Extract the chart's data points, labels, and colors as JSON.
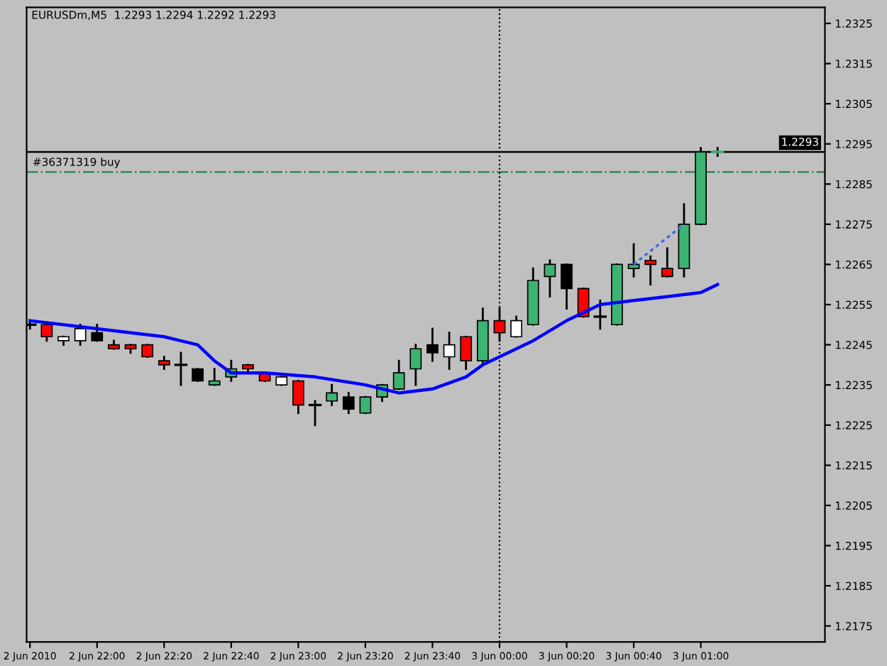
{
  "chart_data": {
    "type": "candlestick",
    "title": "EURUSDm,M5  1.2293 1.2294 1.2292 1.2293",
    "x": [
      "2010-06-02T21:40",
      "2010-06-02T21:45",
      "2010-06-02T21:50",
      "2010-06-02T21:55",
      "2010-06-02T22:00",
      "2010-06-02T22:05",
      "2010-06-02T22:10",
      "2010-06-02T22:15",
      "2010-06-02T22:20",
      "2010-06-02T22:25",
      "2010-06-02T22:30",
      "2010-06-02T22:35",
      "2010-06-02T22:40",
      "2010-06-02T22:45",
      "2010-06-02T22:50",
      "2010-06-02T22:55",
      "2010-06-02T23:00",
      "2010-06-02T23:05",
      "2010-06-02T23:10",
      "2010-06-02T23:15",
      "2010-06-02T23:20",
      "2010-06-02T23:25",
      "2010-06-02T23:30",
      "2010-06-02T23:35",
      "2010-06-02T23:40",
      "2010-06-02T23:45",
      "2010-06-02T23:50",
      "2010-06-02T23:55",
      "2010-06-03T00:00",
      "2010-06-03T00:05",
      "2010-06-03T00:10",
      "2010-06-03T00:15",
      "2010-06-03T00:20",
      "2010-06-03T00:25",
      "2010-06-03T00:30",
      "2010-06-03T00:35",
      "2010-06-03T00:40",
      "2010-06-03T00:45",
      "2010-06-03T00:50",
      "2010-06-03T00:55",
      "2010-06-03T01:00",
      "2010-06-03T01:05"
    ],
    "ohlc": [
      [
        1.225,
        1.2251,
        1.2249,
        1.225
      ],
      [
        1.225,
        1.225,
        1.2246,
        1.2247
      ],
      [
        1.2246,
        1.2247,
        1.2245,
        1.2247
      ],
      [
        1.2246,
        1.225,
        1.2245,
        1.2249
      ],
      [
        1.2248,
        1.225,
        1.2246,
        1.2246
      ],
      [
        1.2245,
        1.2246,
        1.2244,
        1.2244
      ],
      [
        1.2245,
        1.2245,
        1.2243,
        1.2244
      ],
      [
        1.2245,
        1.2245,
        1.2242,
        1.2242
      ],
      [
        1.2241,
        1.2242,
        1.2239,
        1.224
      ],
      [
        1.224,
        1.2243,
        1.2235,
        1.224
      ],
      [
        1.2239,
        1.2239,
        1.2236,
        1.2236
      ],
      [
        1.2235,
        1.2239,
        1.2235,
        1.2236
      ],
      [
        1.2237,
        1.2241,
        1.2236,
        1.2239
      ],
      [
        1.224,
        1.224,
        1.2238,
        1.2239
      ],
      [
        1.2238,
        1.2238,
        1.2236,
        1.2236
      ],
      [
        1.2235,
        1.2237,
        1.2235,
        1.2237
      ],
      [
        1.2236,
        1.2236,
        1.2228,
        1.223
      ],
      [
        1.223,
        1.2231,
        1.2225,
        1.223
      ],
      [
        1.2231,
        1.2235,
        1.223,
        1.2233
      ],
      [
        1.2232,
        1.2233,
        1.2228,
        1.2229
      ],
      [
        1.2228,
        1.2232,
        1.2228,
        1.2232
      ],
      [
        1.2232,
        1.2235,
        1.2231,
        1.2235
      ],
      [
        1.2234,
        1.2241,
        1.2234,
        1.2238
      ],
      [
        1.2239,
        1.2245,
        1.2235,
        1.2244
      ],
      [
        1.2245,
        1.2249,
        1.2241,
        1.2243
      ],
      [
        1.2242,
        1.2248,
        1.2239,
        1.2245
      ],
      [
        1.2247,
        1.2247,
        1.2239,
        1.2241
      ],
      [
        1.2241,
        1.2254,
        1.224,
        1.2251
      ],
      [
        1.2251,
        1.2254,
        1.2246,
        1.2248
      ],
      [
        1.2247,
        1.2252,
        1.2247,
        1.2251
      ],
      [
        1.225,
        1.2264,
        1.225,
        1.2261
      ],
      [
        1.2262,
        1.2266,
        1.2257,
        1.2265
      ],
      [
        1.2265,
        1.2265,
        1.2254,
        1.2259
      ],
      [
        1.2259,
        1.2259,
        1.2252,
        1.2252
      ],
      [
        1.2252,
        1.2256,
        1.2249,
        1.2252
      ],
      [
        1.225,
        1.2265,
        1.225,
        1.2265
      ],
      [
        1.2264,
        1.227,
        1.2262,
        1.2265
      ],
      [
        1.2266,
        1.2267,
        1.226,
        1.2265
      ],
      [
        1.2264,
        1.2269,
        1.2262,
        1.2262
      ],
      [
        1.2264,
        1.228,
        1.2262,
        1.2275
      ],
      [
        1.2275,
        1.2294,
        1.2275,
        1.2293
      ],
      [
        1.2293,
        1.2294,
        1.2292,
        1.2293
      ]
    ],
    "colors": [
      "#000000",
      "#ff0000",
      "#ffffff",
      "#ffffff",
      "#000000",
      "#ff0000",
      "#ff0000",
      "#ff0000",
      "#ff0000",
      "#000000",
      "#000000",
      "#3cb371",
      "#3cb371",
      "#ff0000",
      "#ff0000",
      "#ffffff",
      "#ff0000",
      "#000000",
      "#3cb371",
      "#000000",
      "#3cb371",
      "#3cb371",
      "#3cb371",
      "#3cb371",
      "#000000",
      "#ffffff",
      "#ff0000",
      "#3cb371",
      "#ff0000",
      "#ffffff",
      "#3cb371",
      "#3cb371",
      "#000000",
      "#ff0000",
      "#000000",
      "#3cb371",
      "#3cb371",
      "#ff0000",
      "#ff0000",
      "#3cb371",
      "#3cb371",
      "#3cb371"
    ],
    "series": [
      {
        "type": "line",
        "color": "#0000ff",
        "line_style": "solid",
        "x": [
          "2010-06-02T21:40",
          "2010-06-02T22:00",
          "2010-06-02T22:20",
          "2010-06-02T22:30",
          "2010-06-02T22:35",
          "2010-06-02T22:40",
          "2010-06-02T22:50",
          "2010-06-02T23:05",
          "2010-06-02T23:20",
          "2010-06-02T23:30",
          "2010-06-02T23:40",
          "2010-06-02T23:50",
          "2010-06-02T23:55",
          "2010-06-03T00:00",
          "2010-06-03T00:05",
          "2010-06-03T00:10",
          "2010-06-03T00:20",
          "2010-06-03T00:25",
          "2010-06-03T00:30",
          "2010-06-03T00:40",
          "2010-06-03T00:50",
          "2010-06-03T01:00",
          "2010-06-03T01:05"
        ],
        "values": [
          1.2251,
          1.2249,
          1.2247,
          1.2245,
          1.2241,
          1.2238,
          1.2238,
          1.2237,
          1.2235,
          1.2233,
          1.2234,
          1.2237,
          1.224,
          1.2242,
          1.2244,
          1.2246,
          1.2251,
          1.2253,
          1.2255,
          1.2256,
          1.2257,
          1.2258,
          1.226
        ]
      },
      {
        "type": "line",
        "color": "#4169e1",
        "line_style": "dotted",
        "x": [
          "2010-06-03T00:40",
          "2010-06-03T00:55"
        ],
        "values": [
          1.2265,
          1.2275
        ]
      }
    ],
    "xlim": [
      "2010-06-02T21:39",
      "2010-06-03T01:37"
    ],
    "xticks": [
      {
        "value": "2010-06-02T21:40",
        "label": "2 Jun 2010"
      },
      {
        "value": "2010-06-02T22:00",
        "label": "2 Jun 22:00"
      },
      {
        "value": "2010-06-02T22:20",
        "label": "2 Jun 22:20"
      },
      {
        "value": "2010-06-02T22:40",
        "label": "2 Jun 22:40"
      },
      {
        "value": "2010-06-02T23:00",
        "label": "2 Jun 23:00"
      },
      {
        "value": "2010-06-02T23:20",
        "label": "2 Jun 23:20"
      },
      {
        "value": "2010-06-02T23:40",
        "label": "2 Jun 23:40"
      },
      {
        "value": "2010-06-03T00:00",
        "label": "3 Jun 00:00"
      },
      {
        "value": "2010-06-03T00:20",
        "label": "3 Jun 00:20"
      },
      {
        "value": "2010-06-03T00:40",
        "label": "3 Jun 00:40"
      },
      {
        "value": "2010-06-03T01:00",
        "label": "3 Jun 01:00"
      }
    ],
    "ylim": [
      1.2171,
      1.2329
    ],
    "yticks": [
      1.2175,
      1.2185,
      1.2195,
      1.2205,
      1.2215,
      1.2225,
      1.2235,
      1.2245,
      1.2255,
      1.2265,
      1.2275,
      1.2285,
      1.2295,
      1.2305,
      1.2315,
      1.2325
    ],
    "ref_lines": [
      {
        "axis": "y",
        "value": 1.2293,
        "label": "1.2293",
        "color": "#000000",
        "line_style": "solid"
      },
      {
        "axis": "y",
        "value": 1.2288,
        "label": "#36371319 buy",
        "color": "#2e8b57",
        "line_style": "dashdot"
      },
      {
        "axis": "x",
        "value": "2010-06-03T00:00",
        "color": "#000000",
        "line_style": "dotted"
      }
    ],
    "grid": false,
    "legend": false
  }
}
